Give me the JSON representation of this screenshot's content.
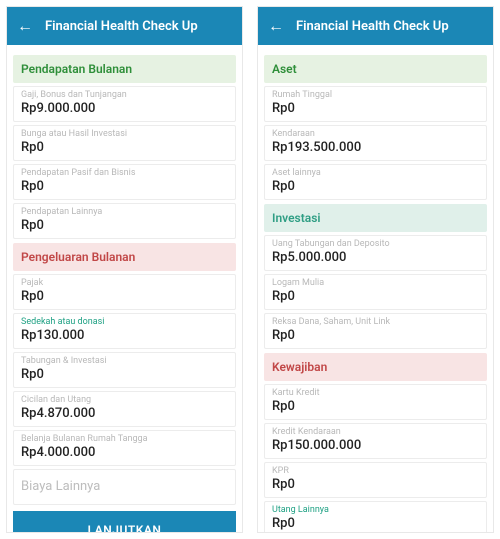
{
  "appbar": {
    "title": "Financial Health Check Up",
    "back_icon": "←"
  },
  "colors": {
    "appbar_bg": "#1b87b6",
    "green_bg": "#e6f2e2",
    "green_fg": "#2f8f3a",
    "red_bg": "#f8e4e4",
    "red_fg": "#c14747",
    "teal_bg": "#e0f0ea",
    "teal_fg": "#2f9e84",
    "label_muted": "#b8b8b8",
    "label_accent": "#1fa184",
    "value": "#222222",
    "border": "#ececec",
    "placeholder": "#bdbdbd"
  },
  "left": {
    "income": {
      "header": "Pendapatan Bulanan",
      "items": [
        {
          "label": "Gaji, Bonus dan Tunjangan",
          "value": "Rp9.000.000"
        },
        {
          "label": "Bunga atau Hasil Investasi",
          "value": "Rp0"
        },
        {
          "label": "Pendapatan Pasif dan Bisnis",
          "value": "Rp0"
        },
        {
          "label": "Pendapatan Lainnya",
          "value": "Rp0"
        }
      ]
    },
    "expense": {
      "header": "Pengeluaran Bulanan",
      "items": [
        {
          "label": "Pajak",
          "value": "Rp0",
          "accent": false
        },
        {
          "label": "Sedekah atau donasi",
          "value": "Rp130.000",
          "accent": true
        },
        {
          "label": "Tabungan & Investasi",
          "value": "Rp0",
          "accent": false
        },
        {
          "label": "Cicilan dan Utang",
          "value": "Rp4.870.000",
          "accent": false
        },
        {
          "label": "Belanja Bulanan Rumah Tangga",
          "value": "Rp4.000.000",
          "accent": false
        }
      ],
      "other_placeholder": "Biaya Lainnya"
    },
    "cta": "LANJUTKAN"
  },
  "right": {
    "asset": {
      "header": "Aset",
      "items": [
        {
          "label": "Rumah Tinggal",
          "value": "Rp0"
        },
        {
          "label": "Kendaraan",
          "value": "Rp193.500.000"
        },
        {
          "label": "Aset lainnya",
          "value": "Rp0"
        }
      ]
    },
    "invest": {
      "header": "Investasi",
      "items": [
        {
          "label": "Uang Tabungan dan Deposito",
          "value": "Rp5.000.000"
        },
        {
          "label": "Logam Mulia",
          "value": "Rp0"
        },
        {
          "label": "Reksa Dana, Saham, Unit Link",
          "value": "Rp0"
        }
      ]
    },
    "liab": {
      "header": "Kewajiban",
      "items": [
        {
          "label": "Kartu Kredit",
          "value": "Rp0",
          "accent": false
        },
        {
          "label": "Kredit Kendaraan",
          "value": "Rp150.000.000",
          "accent": false
        },
        {
          "label": "KPR",
          "value": "Rp0",
          "accent": false
        },
        {
          "label": "Utang Lainnya",
          "value": "Rp0",
          "accent": true
        }
      ]
    }
  }
}
